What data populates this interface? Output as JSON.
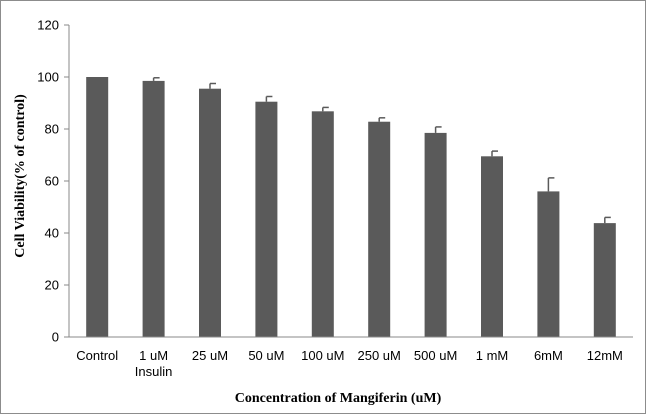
{
  "chart_data": {
    "type": "bar",
    "categories": [
      [
        "Control"
      ],
      [
        "1 uM",
        "Insulin"
      ],
      [
        "25 uM"
      ],
      [
        "50 uM"
      ],
      [
        "100 uM"
      ],
      [
        "250 uM"
      ],
      [
        "500 uM"
      ],
      [
        "1 mM"
      ],
      [
        "6mM"
      ],
      [
        "12mM"
      ]
    ],
    "values": [
      100,
      98.5,
      95.5,
      90.5,
      86.8,
      82.8,
      78.5,
      69.5,
      56,
      43.8
    ],
    "errors": [
      0,
      1.2,
      2,
      2,
      1.5,
      1.5,
      2.3,
      2,
      5.2,
      2.2
    ],
    "xlabel": "Concentration of Mangiferin (uM)",
    "ylabel": "Cell Viability(% of control)",
    "ylim": [
      0,
      120
    ],
    "yticks": [
      0,
      20,
      40,
      60,
      80,
      100,
      120
    ],
    "grid": false,
    "legend": "none",
    "bar_color": "#5a5a5a",
    "error_color": "#5a5a5a"
  }
}
